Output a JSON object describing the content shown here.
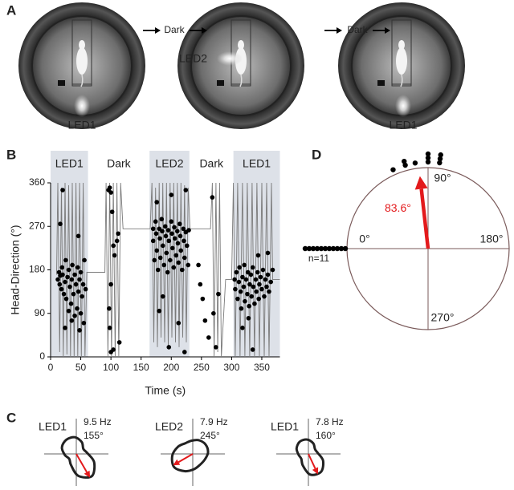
{
  "panel_labels": [
    "A",
    "B",
    "C",
    "D"
  ],
  "panel_a": {
    "arrow_labels": [
      "Dark",
      "Dark"
    ],
    "led_labels": [
      "LED1",
      "LED2",
      "LED1"
    ]
  },
  "chart_data": [
    {
      "type": "scatter",
      "xlabel": "Time (s)",
      "ylabel": "Head-Direction (°)",
      "xlim": [
        0,
        380
      ],
      "ylim": [
        0,
        360
      ],
      "xticks": [
        0,
        50,
        100,
        150,
        200,
        250,
        300,
        350
      ],
      "yticks": [
        0,
        90,
        180,
        270,
        360
      ],
      "shade_color": "#dde1e8",
      "phases": [
        {
          "label": "LED1",
          "start": 0,
          "end": 62,
          "shaded": true
        },
        {
          "label": "Dark",
          "start": 62,
          "end": 164,
          "shaded": false
        },
        {
          "label": "LED2",
          "start": 164,
          "end": 230,
          "shaded": true
        },
        {
          "label": "Dark",
          "start": 230,
          "end": 303,
          "shaded": false
        },
        {
          "label": "LED1",
          "start": 303,
          "end": 380,
          "shaded": true
        }
      ],
      "trace": {
        "color": "#7a7a7a",
        "x": [
          10,
          12,
          15,
          18,
          21,
          24,
          27,
          30,
          33,
          36,
          39,
          42,
          45,
          48,
          51,
          54,
          57,
          60,
          90,
          92,
          95,
          98,
          101,
          104,
          107,
          110,
          113,
          116,
          120,
          165,
          168,
          171,
          174,
          177,
          180,
          183,
          186,
          189,
          192,
          195,
          198,
          201,
          204,
          207,
          210,
          213,
          216,
          219,
          222,
          225,
          228,
          231,
          265,
          268,
          271,
          274,
          277,
          280,
          283,
          290,
          300,
          303,
          306,
          310,
          314,
          318,
          322,
          326,
          330,
          334,
          338,
          342,
          346,
          350,
          354,
          358,
          362,
          366,
          368,
          380
        ],
        "y": [
          170,
          360,
          10,
          350,
          0,
          360,
          5,
          355,
          0,
          360,
          0,
          360,
          0,
          360,
          0,
          360,
          0,
          175,
          175,
          360,
          0,
          360,
          0,
          360,
          0,
          360,
          0,
          360,
          265,
          265,
          360,
          30,
          350,
          20,
          360,
          40,
          360,
          30,
          360,
          20,
          360,
          40,
          360,
          30,
          360,
          20,
          360,
          40,
          355,
          30,
          350,
          265,
          265,
          360,
          0,
          360,
          10,
          360,
          0,
          160,
          160,
          360,
          0,
          360,
          0,
          360,
          0,
          360,
          0,
          360,
          0,
          360,
          0,
          360,
          0,
          360,
          0,
          360,
          160,
          160
        ]
      },
      "points": {
        "color": "#000000",
        "xy": [
          [
            12,
            160
          ],
          [
            14,
            175
          ],
          [
            15,
            150
          ],
          [
            16,
            168
          ],
          [
            18,
            140
          ],
          [
            19,
            185
          ],
          [
            20,
            170
          ],
          [
            22,
            130
          ],
          [
            24,
            155
          ],
          [
            25,
            200
          ],
          [
            26,
            120
          ],
          [
            28,
            165
          ],
          [
            30,
            95
          ],
          [
            30,
            180
          ],
          [
            32,
            145
          ],
          [
            34,
            110
          ],
          [
            35,
            160
          ],
          [
            36,
            190
          ],
          [
            38,
            130
          ],
          [
            40,
            85
          ],
          [
            40,
            170
          ],
          [
            42,
            150
          ],
          [
            44,
            100
          ],
          [
            45,
            185
          ],
          [
            46,
            135
          ],
          [
            48,
            160
          ],
          [
            50,
            90
          ],
          [
            50,
            175
          ],
          [
            52,
            125
          ],
          [
            54,
            150
          ],
          [
            55,
            70
          ],
          [
            56,
            200
          ],
          [
            58,
            140
          ],
          [
            24,
            60
          ],
          [
            35,
            75
          ],
          [
            48,
            55
          ],
          [
            20,
            345
          ],
          [
            46,
            250
          ],
          [
            16,
            275
          ],
          [
            96,
            345
          ],
          [
            98,
            350
          ],
          [
            100,
            340
          ],
          [
            102,
            300
          ],
          [
            104,
            230
          ],
          [
            106,
            210
          ],
          [
            100,
            150
          ],
          [
            97,
            100
          ],
          [
            98,
            60
          ],
          [
            100,
            10
          ],
          [
            104,
            15
          ],
          [
            110,
            240
          ],
          [
            112,
            255
          ],
          [
            114,
            30
          ],
          [
            170,
            265
          ],
          [
            170,
            240
          ],
          [
            172,
            200
          ],
          [
            174,
            280
          ],
          [
            175,
            255
          ],
          [
            176,
            220
          ],
          [
            178,
            180
          ],
          [
            180,
            265
          ],
          [
            181,
            245
          ],
          [
            182,
            205
          ],
          [
            184,
            285
          ],
          [
            185,
            260
          ],
          [
            186,
            230
          ],
          [
            188,
            190
          ],
          [
            190,
            270
          ],
          [
            191,
            250
          ],
          [
            192,
            215
          ],
          [
            194,
            175
          ],
          [
            195,
            262
          ],
          [
            196,
            240
          ],
          [
            198,
            200
          ],
          [
            200,
            280
          ],
          [
            201,
            255
          ],
          [
            202,
            225
          ],
          [
            204,
            185
          ],
          [
            205,
            268
          ],
          [
            206,
            245
          ],
          [
            208,
            210
          ],
          [
            210,
            260
          ],
          [
            211,
            235
          ],
          [
            212,
            195
          ],
          [
            214,
            275
          ],
          [
            215,
            250
          ],
          [
            216,
            220
          ],
          [
            218,
            180
          ],
          [
            220,
            265
          ],
          [
            221,
            240
          ],
          [
            222,
            205
          ],
          [
            224,
            258
          ],
          [
            226,
            230
          ],
          [
            228,
            190
          ],
          [
            229,
            262
          ],
          [
            176,
            320
          ],
          [
            200,
            335
          ],
          [
            224,
            345
          ],
          [
            186,
            125
          ],
          [
            212,
            70
          ],
          [
            222,
            10
          ],
          [
            196,
            20
          ],
          [
            180,
            95
          ],
          [
            245,
            190
          ],
          [
            248,
            150
          ],
          [
            252,
            120
          ],
          [
            256,
            75
          ],
          [
            262,
            40
          ],
          [
            270,
            90
          ],
          [
            274,
            20
          ],
          [
            268,
            330
          ],
          [
            278,
            130
          ],
          [
            305,
            160
          ],
          [
            306,
            140
          ],
          [
            308,
            175
          ],
          [
            310,
            120
          ],
          [
            312,
            155
          ],
          [
            313,
            185
          ],
          [
            315,
            135
          ],
          [
            316,
            100
          ],
          [
            318,
            165
          ],
          [
            320,
            145
          ],
          [
            321,
            190
          ],
          [
            322,
            115
          ],
          [
            324,
            160
          ],
          [
            326,
            130
          ],
          [
            327,
            175
          ],
          [
            329,
            105
          ],
          [
            330,
            150
          ],
          [
            332,
            170
          ],
          [
            333,
            125
          ],
          [
            335,
            185
          ],
          [
            336,
            145
          ],
          [
            338,
            110
          ],
          [
            340,
            160
          ],
          [
            341,
            135
          ],
          [
            343,
            175
          ],
          [
            345,
            120
          ],
          [
            346,
            150
          ],
          [
            348,
            165
          ],
          [
            350,
            140
          ],
          [
            352,
            180
          ],
          [
            354,
            125
          ],
          [
            356,
            160
          ],
          [
            358,
            145
          ],
          [
            360,
            170
          ],
          [
            362,
            135
          ],
          [
            365,
            155
          ],
          [
            368,
            180
          ],
          [
            318,
            60
          ],
          [
            328,
            80
          ],
          [
            344,
            210
          ],
          [
            360,
            215
          ],
          [
            335,
            15
          ]
        ]
      }
    },
    {
      "type": "polar",
      "ticks": [
        {
          "value": 0,
          "label": "0°"
        },
        {
          "value": 90,
          "label": "90°"
        },
        {
          "value": 180,
          "label": "180°"
        },
        {
          "value": 270,
          "label": "270°"
        }
      ],
      "angles": [
        0,
        0,
        0,
        0,
        0,
        0,
        0,
        0,
        0,
        0,
        0,
        65,
        74,
        74,
        81,
        90,
        90,
        90,
        98,
        98,
        98
      ],
      "count_label": "n=11",
      "mean": {
        "value": 83.6,
        "label": "83.6°",
        "length": 0.9,
        "color": "#e31a1c"
      },
      "circle_color": "#7a5a5a"
    },
    {
      "type": "polar-rate",
      "angles": [
        0,
        30,
        60,
        90,
        120,
        150,
        180,
        210,
        240,
        270,
        300,
        330
      ],
      "rlim": [
        0,
        10
      ],
      "arrow_color": "#e31a1c",
      "cells": [
        {
          "label": "LED1",
          "rate_label": "9.5 Hz",
          "peak_rate": 9.5,
          "direction": 155,
          "direction_label": "155°",
          "rates": [
            5.8,
            4.5,
            3,
            3.8,
            6.8,
            9.4,
            7.6,
            4.3,
            3,
            4,
            5.5,
            6
          ]
        },
        {
          "label": "LED2",
          "rate_label": "7.9 Hz",
          "peak_rate": 7.9,
          "direction": 245,
          "direction_label": "245°",
          "rates": [
            4.6,
            5.2,
            5.5,
            5.3,
            4.6,
            4.5,
            5.3,
            6.6,
            7.9,
            7.1,
            5.7,
            4.5
          ]
        },
        {
          "label": "LED1",
          "rate_label": "7.8 Hz",
          "peak_rate": 7.8,
          "direction": 160,
          "direction_label": "160°",
          "rates": [
            5,
            4,
            2.8,
            3.3,
            5.6,
            7.6,
            7.2,
            4.5,
            3,
            3.4,
            4.5,
            5.2
          ]
        }
      ]
    }
  ]
}
